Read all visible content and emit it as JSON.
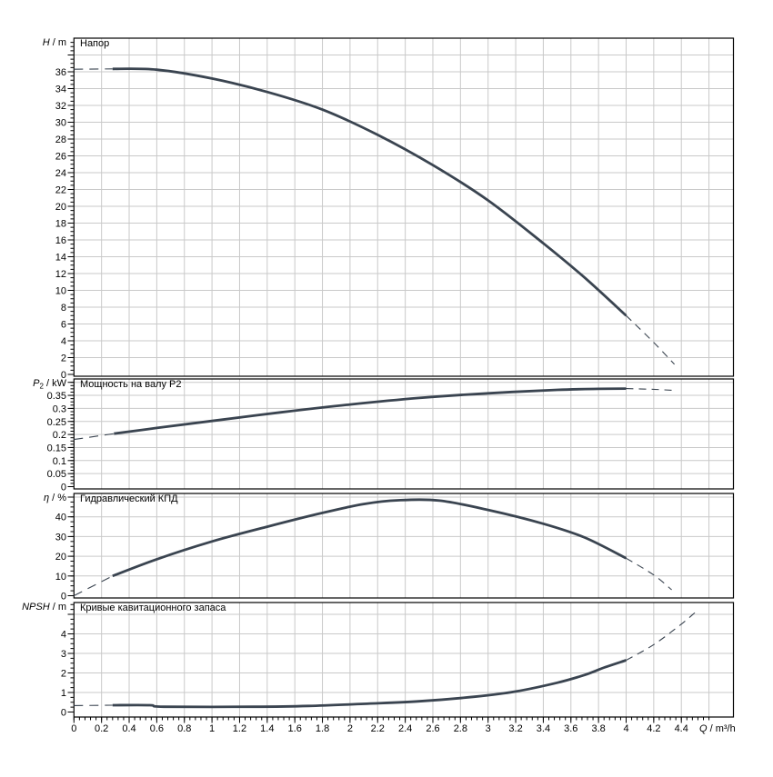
{
  "page": {
    "background": "#ffffff"
  },
  "colors": {
    "curve": "#3a4450",
    "grid": "#c9c9c9",
    "axis": "#000000",
    "text": "#000000"
  },
  "x_axis": {
    "label_variable": "Q",
    "label_unit": " / m³/h",
    "min": 0,
    "max": 4.78,
    "major_step": 0.2,
    "minor_step": 0.04,
    "grid_max": 4.6,
    "tick_labels": [
      "0",
      "0.2",
      "0.4",
      "0.6",
      "0.8",
      "1",
      "1.2",
      "1.4",
      "1.6",
      "1.8",
      "2",
      "2.2",
      "2.4",
      "2.6",
      "2.8",
      "3",
      "3.2",
      "3.4",
      "3.6",
      "3.8",
      "4",
      "4.2",
      "4.4"
    ]
  },
  "chart_data": [
    {
      "type": "line",
      "title": "Напор",
      "axis_variable": "H",
      "axis_subscript": "",
      "axis_unit": " / m",
      "ylabel": "H / m",
      "xlabel": "Q / m³/h",
      "y_tick_labels": [
        "0",
        "2",
        "4",
        "6",
        "8",
        "10",
        "12",
        "14",
        "16",
        "18",
        "20",
        "22",
        "24",
        "26",
        "28",
        "30",
        "32",
        "34",
        "36"
      ],
      "y_major_step": 2,
      "y_minor_step": 0.5,
      "y_grid_max": 38,
      "ylim": [
        0,
        40
      ],
      "segments": [
        {
          "style": "dashed",
          "points": [
            [
              0,
              36.3
            ],
            [
              0.28,
              36.35
            ]
          ]
        },
        {
          "style": "solid",
          "points": [
            [
              0.28,
              36.35
            ],
            [
              0.6,
              36.25
            ],
            [
              1.0,
              35.2
            ],
            [
              1.4,
              33.6
            ],
            [
              1.8,
              31.5
            ],
            [
              2.2,
              28.5
            ],
            [
              2.6,
              24.9
            ],
            [
              3.0,
              20.7
            ],
            [
              3.4,
              15.6
            ],
            [
              3.7,
              11.5
            ],
            [
              4.0,
              7.0
            ]
          ]
        },
        {
          "style": "dashed",
          "points": [
            [
              4.0,
              7.0
            ],
            [
              4.2,
              3.8
            ],
            [
              4.35,
              1.2
            ]
          ]
        }
      ]
    },
    {
      "type": "line",
      "title": "Мощность на валу P2",
      "axis_variable": "P",
      "axis_subscript": "2",
      "axis_unit": " / kW",
      "ylabel": "P2 / kW",
      "xlabel": "Q / m³/h",
      "y_tick_labels": [
        "0",
        "0.05",
        "0.1",
        "0.15",
        "0.2",
        "0.25",
        "0.3",
        "0.35"
      ],
      "y_major_step": 0.05,
      "y_minor_step": 0.0125,
      "y_grid_max": 0.4,
      "ylim": [
        0,
        0.41
      ],
      "segments": [
        {
          "style": "dashed",
          "points": [
            [
              0,
              0.181
            ],
            [
              0.29,
              0.203
            ]
          ]
        },
        {
          "style": "solid",
          "points": [
            [
              0.29,
              0.203
            ],
            [
              0.6,
              0.225
            ],
            [
              1.0,
              0.252
            ],
            [
              1.5,
              0.285
            ],
            [
              2.0,
              0.315
            ],
            [
              2.5,
              0.34
            ],
            [
              3.0,
              0.358
            ],
            [
              3.5,
              0.371
            ],
            [
              3.8,
              0.375
            ],
            [
              4.0,
              0.376
            ]
          ]
        },
        {
          "style": "dashed",
          "points": [
            [
              4.0,
              0.376
            ],
            [
              4.2,
              0.373
            ],
            [
              4.35,
              0.369
            ]
          ]
        }
      ]
    },
    {
      "type": "line",
      "title": "Гидравлический КПД",
      "axis_variable": "η",
      "axis_subscript": "",
      "axis_unit": " / %",
      "ylabel": "η / %",
      "xlabel": "Q / m³/h",
      "y_tick_labels": [
        "0",
        "10",
        "20",
        "30",
        "40"
      ],
      "y_major_step": 10,
      "y_minor_step": 2.5,
      "y_grid_max": 50,
      "ylim": [
        0,
        53
      ],
      "segments": [
        {
          "style": "dashed",
          "points": [
            [
              0,
              0
            ],
            [
              0.28,
              10
            ]
          ]
        },
        {
          "style": "solid",
          "points": [
            [
              0.28,
              10
            ],
            [
              0.6,
              18.5
            ],
            [
              1.0,
              27.5
            ],
            [
              1.4,
              35
            ],
            [
              1.8,
              42
            ],
            [
              2.1,
              46.5
            ],
            [
              2.35,
              48.4
            ],
            [
              2.65,
              48.2
            ],
            [
              3.0,
              43.5
            ],
            [
              3.4,
              36.5
            ],
            [
              3.7,
              29.5
            ],
            [
              4.0,
              19
            ]
          ]
        },
        {
          "style": "dashed",
          "points": [
            [
              4.0,
              19
            ],
            [
              4.2,
              10.5
            ],
            [
              4.33,
              3
            ]
          ]
        }
      ]
    },
    {
      "type": "line",
      "title": "Кривые кавитационного запаса",
      "axis_variable": "NPSH",
      "axis_subscript": "",
      "axis_unit": " / m",
      "ylabel": "NPSH / m",
      "xlabel": "Q / m³/h",
      "y_tick_labels": [
        "0",
        "1",
        "2",
        "3",
        "4"
      ],
      "y_major_step": 1,
      "y_minor_step": 0.25,
      "y_grid_max": 5,
      "ylim": [
        0,
        5.65
      ],
      "segments": [
        {
          "style": "dashed",
          "points": [
            [
              0,
              0.33
            ],
            [
              0.28,
              0.35
            ]
          ]
        },
        {
          "style": "solid",
          "points": [
            [
              0.28,
              0.35
            ],
            [
              0.55,
              0.35
            ],
            [
              0.65,
              0.27
            ],
            [
              1.3,
              0.27
            ],
            [
              1.7,
              0.31
            ],
            [
              2.1,
              0.42
            ],
            [
              2.5,
              0.55
            ],
            [
              2.9,
              0.78
            ],
            [
              3.2,
              1.05
            ],
            [
              3.5,
              1.5
            ],
            [
              3.7,
              1.9
            ],
            [
              3.85,
              2.3
            ],
            [
              4.0,
              2.65
            ]
          ]
        },
        {
          "style": "dashed",
          "points": [
            [
              4.0,
              2.65
            ],
            [
              4.2,
              3.45
            ],
            [
              4.4,
              4.5
            ],
            [
              4.5,
              5.1
            ]
          ]
        }
      ]
    }
  ]
}
